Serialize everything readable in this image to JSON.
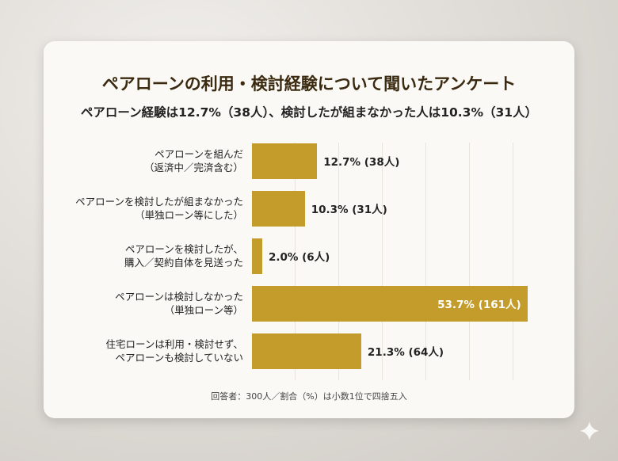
{
  "chart_data": {
    "type": "bar",
    "orientation": "horizontal",
    "title": "ペアローンの利用・検討経験について聞いたアンケート",
    "subtitle": "ペアローン経験は12.7%（38人）、検討したが組まなかった人は10.3%（31人）",
    "categories": [
      "ペアローンを組んだ\n（返済中／完済含む）",
      "ペアローンを検討したが組まなかった\n（単独ローン等にした）",
      "ペアローンを検討したが、\n購入／契約自体を見送った",
      "ペアローンは検討しなかった\n（単独ローン等）",
      "住宅ローンは利用・検討せず、\nペアローンも検討していない"
    ],
    "values": [
      12.7,
      10.3,
      2.0,
      53.7,
      21.3
    ],
    "value_labels": [
      "12.7% (38人)",
      "10.3% (31人)",
      "2.0% (6人)",
      "53.7% (161人)",
      "21.3% (64人)"
    ],
    "color": "#c49c2c",
    "xlim": [
      0,
      59
    ],
    "footnote": "回答者：300人／割合（%）は小数1位で四捨五入"
  }
}
